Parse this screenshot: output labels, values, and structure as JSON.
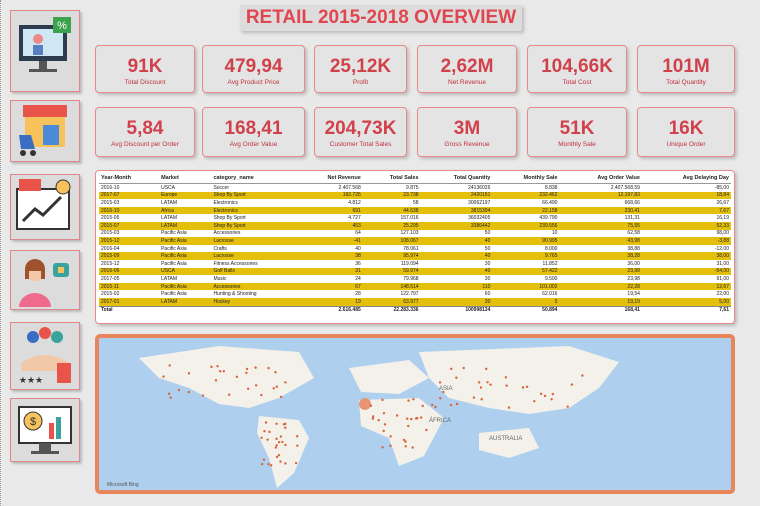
{
  "header": {
    "title": "RETAIL 2015-2018 OVERVIEW"
  },
  "kpis": [
    {
      "value": "91K",
      "label": "Total Discount"
    },
    {
      "value": "479,94",
      "label": "Avg Product Price"
    },
    {
      "value": "25,12K",
      "label": "Profit"
    },
    {
      "value": "2,62M",
      "label": "Net Revenue"
    },
    {
      "value": "104,66K",
      "label": "Total Cost"
    },
    {
      "value": "101M",
      "label": "Total Quantity"
    },
    {
      "value": "5,84",
      "label": "Avg Discount per Order"
    },
    {
      "value": "168,41",
      "label": "Avg Order Value"
    },
    {
      "value": "204,73K",
      "label": "Customer Total Sales"
    },
    {
      "value": "3M",
      "label": "Gross Revenue"
    },
    {
      "value": "51K",
      "label": "Monthly Sale"
    },
    {
      "value": "16K",
      "label": "Unique Order"
    }
  ],
  "table": {
    "columns": [
      "Year-Month",
      "Market",
      "category_name",
      "Net Revenue",
      "Total Sales",
      "Total Quantity",
      "Monthly Sale",
      "Avg Order Value",
      "Avg Delaying Day"
    ],
    "rows": [
      [
        "2016-10",
        "USCA",
        "Soccer",
        "2.407.568",
        "9.875",
        "24136026",
        "8.838",
        "2.407.568,59",
        "-85,00"
      ],
      [
        "2017-07",
        "Europe",
        "Shop By Sport",
        "192.725",
        "23.738",
        "2420151",
        "232.462",
        "12.197,83",
        "18,84"
      ],
      [
        "2015-03",
        "LATAM",
        "Electronics",
        "4.812",
        "58",
        "30062197",
        "66.490",
        "668,66",
        "26,67"
      ],
      [
        "2016-10",
        "Africa",
        "Electronics",
        "691",
        "44.638",
        "3815394",
        "22.158",
        "230,41",
        "7,67"
      ],
      [
        "2015-05",
        "LATAM",
        "Shop By Sport",
        "4.727",
        "157.016",
        "36032405",
        "439.790",
        "131,31",
        "16,19"
      ],
      [
        "2015-07",
        "LATAM",
        "Shop By Sport",
        "453",
        "25.295",
        "3386442",
        "239.556",
        "75,55",
        "52,33"
      ],
      [
        "2015-03",
        "Pacific Asia",
        "Accessories",
        "64",
        "127.103",
        "50",
        "10",
        "62,58",
        "98,00"
      ],
      [
        "2015-12",
        "Pacific Asia",
        "Lacrosse",
        "-41",
        "108.067",
        "40",
        "90.995",
        "43,98",
        "-3,88"
      ],
      [
        "2016-04",
        "Pacific Asia",
        "Crafts",
        "40",
        "78.061",
        "50",
        "8.000",
        "38,88",
        "-12,00"
      ],
      [
        "2015-09",
        "Pacific Asia",
        "Lacrosse",
        "38",
        "95.974",
        "40",
        "9.765",
        "38,28",
        "38,00"
      ],
      [
        "2015-12",
        "Pacific Asia",
        "Fitness Accessories",
        "36",
        "119.094",
        "30",
        "11.852",
        "36,00",
        "31,00"
      ],
      [
        "2016-06",
        "USCA",
        "Golf Balls",
        "31",
        "59.974",
        "40",
        "57.422",
        "23,99",
        "-54,00"
      ],
      [
        "2017-05",
        "LATAM",
        "Music",
        "24",
        "79.968",
        "30",
        "9.500",
        "23,98",
        "91,00"
      ],
      [
        "2015-11",
        "Pacific Asia",
        "Accessories",
        "67",
        "148.514",
        "110",
        "101.002",
        "22,28",
        "12,67"
      ],
      [
        "2015-02",
        "Pacific Asia",
        "Hunting & Shooting",
        "28",
        "122.797",
        "60",
        "62.016",
        "19,54",
        "22,00"
      ],
      [
        "2017-01",
        "LATAM",
        "Hockey",
        "19",
        "63.977",
        "30",
        "5",
        "19,19",
        "5,00"
      ]
    ],
    "total": {
      "label": "Total",
      "values": [
        "2.616.485",
        "22.283.336",
        "100998134",
        "50.894",
        "168,41",
        "7,61"
      ]
    }
  },
  "map": {
    "labels": [
      "ASIA",
      "ÁFRICA",
      "AUSTRALIA"
    ],
    "credit": "Microsoft Bing"
  }
}
